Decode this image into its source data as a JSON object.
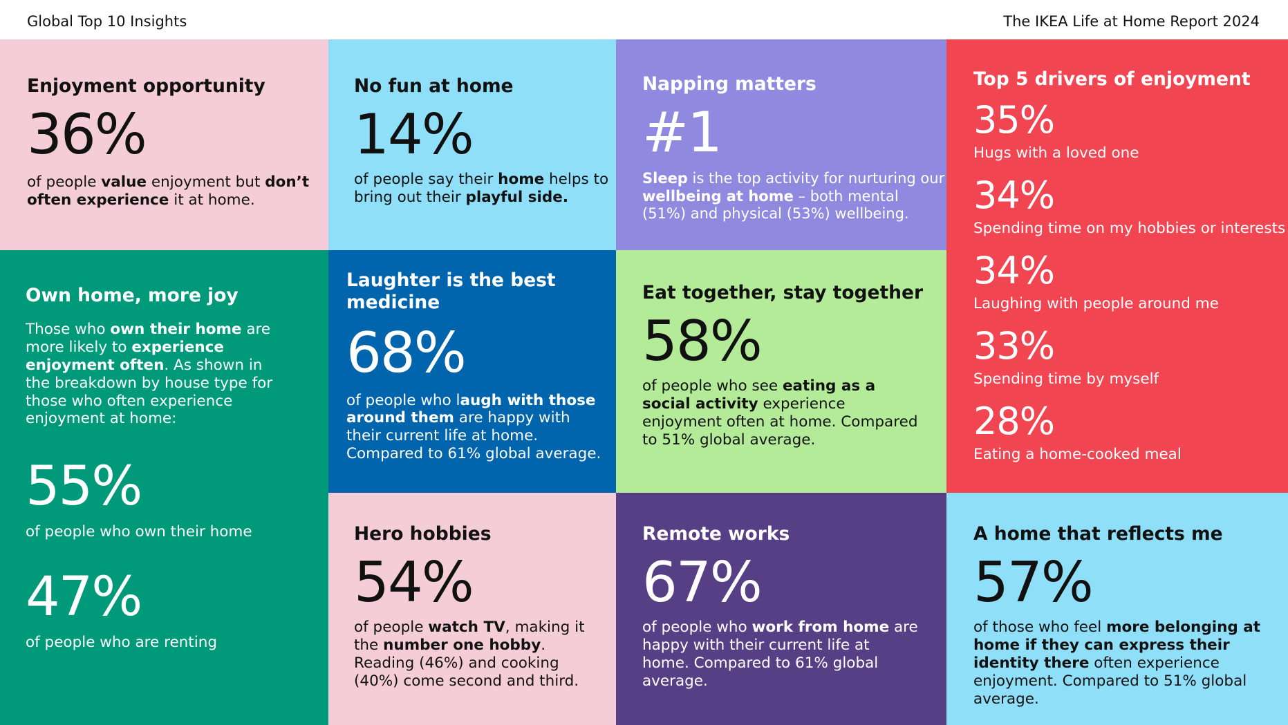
{
  "header": {
    "left": "Global Top 10 Insights",
    "right": "The IKEA Life at Home Report 2024"
  },
  "enjoyment_opportunity": {
    "title": "Enjoyment opportunity",
    "stat": "36%",
    "desc": [
      {
        "t": "of people "
      },
      {
        "t": "value",
        "b": true
      },
      {
        "t": " enjoyment but "
      },
      {
        "t": "don’t often experience",
        "b": true
      },
      {
        "t": " it at home."
      }
    ]
  },
  "no_fun": {
    "title": "No fun at home",
    "stat": "14%",
    "desc": [
      {
        "t": "of people say their "
      },
      {
        "t": "home",
        "b": true
      },
      {
        "t": " helps to bring out their "
      },
      {
        "t": "playful side.",
        "b": true
      }
    ]
  },
  "napping": {
    "title": "Napping matters",
    "stat": "#1",
    "desc": [
      {
        "t": "Sleep",
        "b": true
      },
      {
        "t": " is the top activity for nurturing our "
      },
      {
        "t": "wellbeing at home",
        "b": true
      },
      {
        "t": " – both mental (51%) and physical (53%) wellbeing."
      }
    ]
  },
  "drivers": {
    "title": "Top 5 drivers of enjoyment",
    "items": [
      {
        "value": "35%",
        "label": "Hugs with a loved one"
      },
      {
        "value": "34%",
        "label": "Spending time on my hobbies or interests"
      },
      {
        "value": "34%",
        "label": "Laughing with people around me"
      },
      {
        "value": "33%",
        "label": "Spending time by myself"
      },
      {
        "value": "28%",
        "label": "Eating a home-cooked meal"
      }
    ]
  },
  "own_home": {
    "title": "Own home, more joy",
    "desc": [
      {
        "t": "Those who "
      },
      {
        "t": "own their home",
        "b": true
      },
      {
        "t": " are more likely to "
      },
      {
        "t": "experience enjoyment often",
        "b": true
      },
      {
        "t": ". As shown in the breakdown by house type for those who often experience enjoyment at home:"
      }
    ],
    "stat1": "55%",
    "stat1_desc": "of people who own their home",
    "stat2": "47%",
    "stat2_desc": "of people who are renting"
  },
  "laughter": {
    "title": "Laughter is the best medicine",
    "stat": "68%",
    "desc": [
      {
        "t": "of people who l"
      },
      {
        "t": "augh with those around them",
        "b": true
      },
      {
        "t": " are happy with their current life at home. Compared to 61% global average."
      }
    ]
  },
  "eat_together": {
    "title": "Eat together, stay together",
    "stat": "58%",
    "desc": [
      {
        "t": "of people who see "
      },
      {
        "t": "eating as a social activity",
        "b": true
      },
      {
        "t": " experience enjoyment often at home. Compared to 51% global average."
      }
    ]
  },
  "hero_hobbies": {
    "title": "Hero hobbies",
    "stat": "54%",
    "desc": [
      {
        "t": "of people "
      },
      {
        "t": "watch TV",
        "b": true
      },
      {
        "t": ", making it the "
      },
      {
        "t": "number one hobby",
        "b": true
      },
      {
        "t": ". Reading (46%) and cooking (40%) come second and third."
      }
    ]
  },
  "remote": {
    "title": "Remote works",
    "stat": "67%",
    "desc": [
      {
        "t": "of people who "
      },
      {
        "t": "work from home",
        "b": true
      },
      {
        "t": " are happy with their current life at home. Compared to 61% global average."
      }
    ]
  },
  "reflects": {
    "title": "A home that reflects me",
    "stat": "57%",
    "desc": [
      {
        "t": "of those who feel "
      },
      {
        "t": "more belonging at home if they can express their identity there",
        "b": true
      },
      {
        "t": " often experience enjoyment. Compared to 51% global average."
      }
    ]
  },
  "colors": {
    "pink": "#f5cdd9",
    "light_blue": "#8fdff8",
    "lavender": "#8f89df",
    "red": "#f24552",
    "green": "#009a7a",
    "blue": "#0065ad",
    "light_green": "#b3eb98",
    "purple": "#563f85"
  }
}
